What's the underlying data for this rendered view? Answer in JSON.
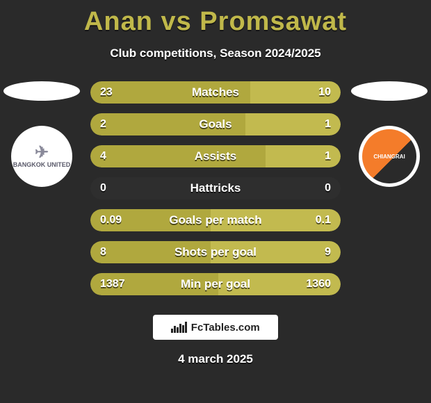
{
  "title": "Anan vs Promsawat",
  "subtitle": "Club competitions, Season 2024/2025",
  "footer_brand": "FcTables.com",
  "footer_date": "4 march 2025",
  "colors": {
    "left_bar": "#b0a83e",
    "right_bar": "#c2ba4f",
    "title": "#c0b84a",
    "background": "#2a2a2a"
  },
  "clubs": {
    "left_name": "BANGKOK UNITED",
    "right_name": "CHIANGRAI"
  },
  "stats": [
    {
      "label": "Matches",
      "left_val": "23",
      "right_val": "10",
      "left_pct": 64,
      "right_pct": 36
    },
    {
      "label": "Goals",
      "left_val": "2",
      "right_val": "1",
      "left_pct": 62,
      "right_pct": 38
    },
    {
      "label": "Assists",
      "left_val": "4",
      "right_val": "1",
      "left_pct": 70,
      "right_pct": 30
    },
    {
      "label": "Hattricks",
      "left_val": "0",
      "right_val": "0",
      "left_pct": 0,
      "right_pct": 0
    },
    {
      "label": "Goals per match",
      "left_val": "0.09",
      "right_val": "0.1",
      "left_pct": 48,
      "right_pct": 52
    },
    {
      "label": "Shots per goal",
      "left_val": "8",
      "right_val": "9",
      "left_pct": 48,
      "right_pct": 52
    },
    {
      "label": "Min per goal",
      "left_val": "1387",
      "right_val": "1360",
      "left_pct": 51,
      "right_pct": 49
    }
  ]
}
